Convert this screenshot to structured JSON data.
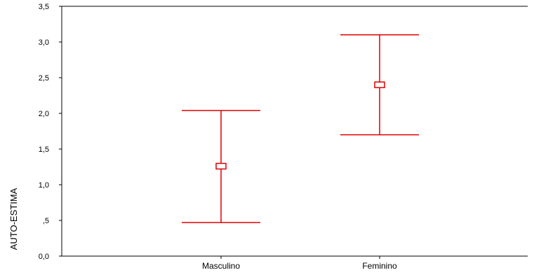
{
  "chart_data": {
    "type": "errorbar",
    "ylabel": "AUTO-ESTIMA",
    "xlabel": "",
    "ylim": [
      0,
      3.5
    ],
    "yticks": [
      {
        "value": 0,
        "label": "0,0"
      },
      {
        "value": 0.5,
        "label": ",5"
      },
      {
        "value": 1.0,
        "label": "1,0"
      },
      {
        "value": 1.5,
        "label": "1,5"
      },
      {
        "value": 2.0,
        "label": "2,0"
      },
      {
        "value": 2.5,
        "label": "2,5"
      },
      {
        "value": 3.0,
        "label": "3,0"
      },
      {
        "value": 3.5,
        "label": "3,5"
      }
    ],
    "categories": [
      "Masculino",
      "Feminino"
    ],
    "points": [
      {
        "category": "Masculino",
        "mean": 1.26,
        "lower": 0.47,
        "upper": 2.04
      },
      {
        "category": "Feminino",
        "mean": 2.4,
        "lower": 1.7,
        "upper": 3.1
      }
    ],
    "color": "#e00000"
  }
}
